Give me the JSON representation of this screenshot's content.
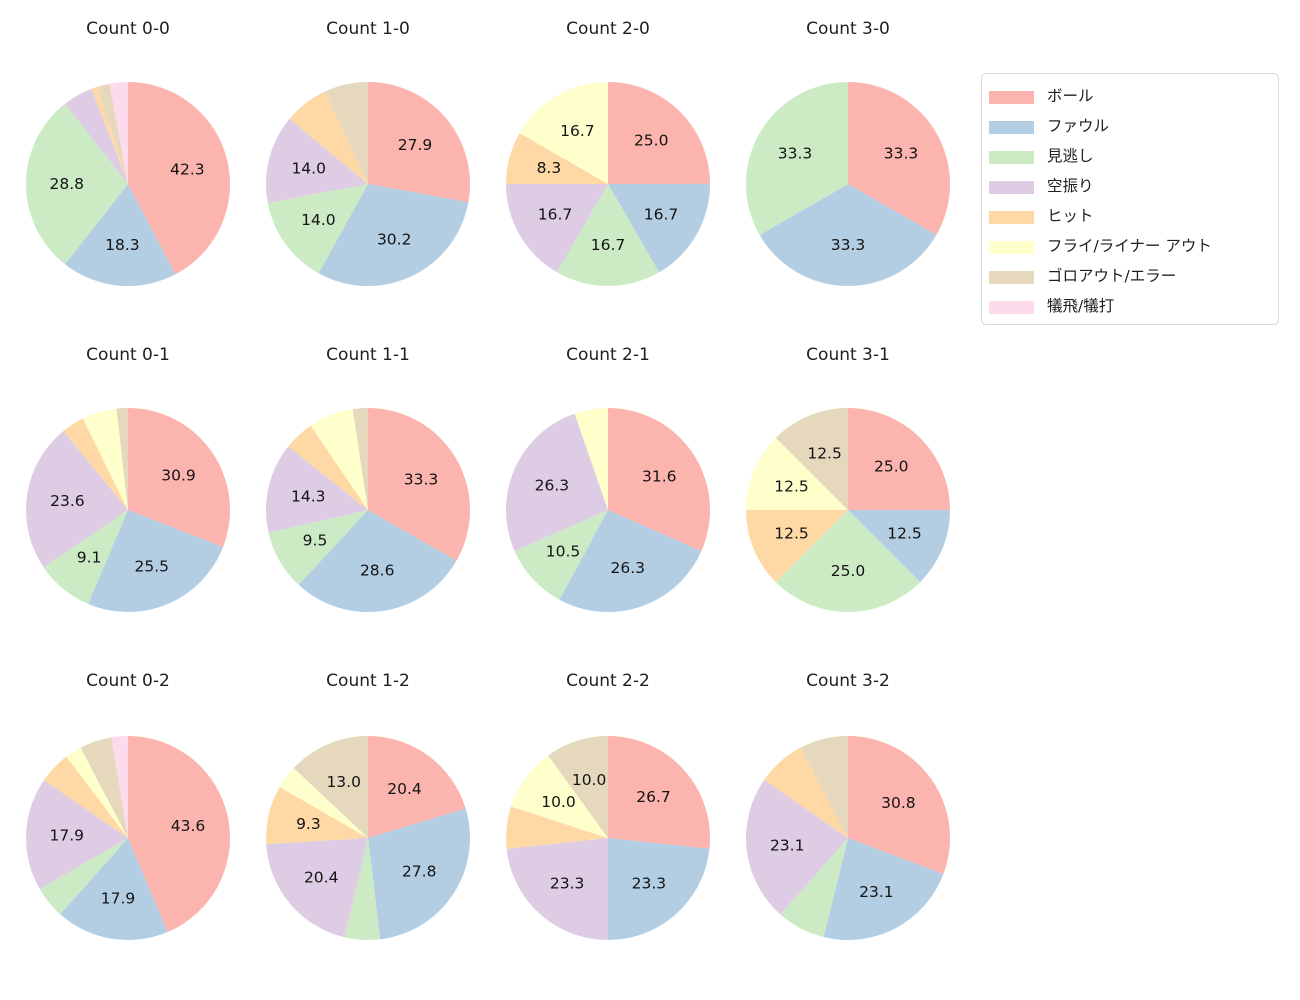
{
  "figure": {
    "background": "#ffffff",
    "text_color": "#1f1f1f"
  },
  "palette": {
    "ボール": "#fbb4ae",
    "ファウル": "#b3cde3",
    "見逃し": "#ccebc5",
    "空振り": "#decbe4",
    "ヒット": "#fed9a6",
    "フライ/ライナー アウト": "#ffffcc",
    "ゴロアウト/エラー": "#e5d8bd",
    "犠飛/犠打": "#fddaec"
  },
  "legend": {
    "position": "upper-right",
    "items": [
      "ボール",
      "ファウル",
      "見逃し",
      "空振り",
      "ヒット",
      "フライ/ライナー アウト",
      "ゴロアウト/エラー",
      "犠飛/犠打"
    ]
  },
  "layout": {
    "grid_rows": 3,
    "grid_cols": 4,
    "start_angle": 90,
    "direction": "clockwise",
    "label_distance": 0.6,
    "label_threshold_pct": 8
  },
  "chart_data": [
    {
      "type": "pie",
      "title": "Count 0-0",
      "slices": [
        {
          "category": "ボール",
          "value": 42.3,
          "label": "42.3"
        },
        {
          "category": "ファウル",
          "value": 18.3,
          "label": "18.3"
        },
        {
          "category": "見逃し",
          "value": 28.8,
          "label": "28.8"
        },
        {
          "category": "空振り",
          "value": 4.8,
          "label": ""
        },
        {
          "category": "ヒット",
          "value": 1.0,
          "label": ""
        },
        {
          "category": "ゴロアウト/エラー",
          "value": 1.9,
          "label": ""
        },
        {
          "category": "犠飛/犠打",
          "value": 2.9,
          "label": ""
        }
      ]
    },
    {
      "type": "pie",
      "title": "Count 1-0",
      "slices": [
        {
          "category": "ボール",
          "value": 27.9,
          "label": "27.9"
        },
        {
          "category": "ファウル",
          "value": 30.2,
          "label": "30.2"
        },
        {
          "category": "見逃し",
          "value": 14.0,
          "label": "14.0"
        },
        {
          "category": "空振り",
          "value": 14.0,
          "label": "14.0"
        },
        {
          "category": "ヒット",
          "value": 7.0,
          "label": ""
        },
        {
          "category": "ゴロアウト/エラー",
          "value": 7.0,
          "label": ""
        }
      ]
    },
    {
      "type": "pie",
      "title": "Count 2-0",
      "slices": [
        {
          "category": "ボール",
          "value": 25.0,
          "label": "25.0"
        },
        {
          "category": "ファウル",
          "value": 16.7,
          "label": "16.7"
        },
        {
          "category": "見逃し",
          "value": 16.7,
          "label": "16.7"
        },
        {
          "category": "空振り",
          "value": 16.7,
          "label": "16.7"
        },
        {
          "category": "ヒット",
          "value": 8.3,
          "label": "8.3"
        },
        {
          "category": "フライ/ライナー アウト",
          "value": 16.7,
          "label": "16.7"
        }
      ]
    },
    {
      "type": "pie",
      "title": "Count 3-0",
      "slices": [
        {
          "category": "ボール",
          "value": 33.3,
          "label": "33.3"
        },
        {
          "category": "ファウル",
          "value": 33.3,
          "label": "33.3"
        },
        {
          "category": "見逃し",
          "value": 33.3,
          "label": "33.3"
        }
      ]
    },
    {
      "type": "pie",
      "title": "Count 0-1",
      "slices": [
        {
          "category": "ボール",
          "value": 30.9,
          "label": "30.9"
        },
        {
          "category": "ファウル",
          "value": 25.5,
          "label": "25.5"
        },
        {
          "category": "見逃し",
          "value": 9.1,
          "label": "9.1"
        },
        {
          "category": "空振り",
          "value": 23.6,
          "label": "23.6"
        },
        {
          "category": "ヒット",
          "value": 3.6,
          "label": ""
        },
        {
          "category": "フライ/ライナー アウト",
          "value": 5.5,
          "label": ""
        },
        {
          "category": "ゴロアウト/エラー",
          "value": 1.8,
          "label": ""
        }
      ]
    },
    {
      "type": "pie",
      "title": "Count 1-1",
      "slices": [
        {
          "category": "ボール",
          "value": 33.3,
          "label": "33.3"
        },
        {
          "category": "ファウル",
          "value": 28.6,
          "label": "28.6"
        },
        {
          "category": "見逃し",
          "value": 9.5,
          "label": "9.5"
        },
        {
          "category": "空振り",
          "value": 14.3,
          "label": "14.3"
        },
        {
          "category": "ヒット",
          "value": 4.8,
          "label": ""
        },
        {
          "category": "フライ/ライナー アウト",
          "value": 7.1,
          "label": ""
        },
        {
          "category": "ゴロアウト/エラー",
          "value": 2.4,
          "label": ""
        }
      ]
    },
    {
      "type": "pie",
      "title": "Count 2-1",
      "slices": [
        {
          "category": "ボール",
          "value": 31.6,
          "label": "31.6"
        },
        {
          "category": "ファウル",
          "value": 26.3,
          "label": "26.3"
        },
        {
          "category": "見逃し",
          "value": 10.5,
          "label": "10.5"
        },
        {
          "category": "空振り",
          "value": 26.3,
          "label": "26.3"
        },
        {
          "category": "フライ/ライナー アウト",
          "value": 5.3,
          "label": ""
        }
      ]
    },
    {
      "type": "pie",
      "title": "Count 3-1",
      "slices": [
        {
          "category": "ボール",
          "value": 25.0,
          "label": "25.0"
        },
        {
          "category": "ファウル",
          "value": 12.5,
          "label": "12.5"
        },
        {
          "category": "見逃し",
          "value": 25.0,
          "label": "25.0"
        },
        {
          "category": "ヒット",
          "value": 12.5,
          "label": "12.5"
        },
        {
          "category": "フライ/ライナー アウト",
          "value": 12.5,
          "label": "12.5"
        },
        {
          "category": "ゴロアウト/エラー",
          "value": 12.5,
          "label": "12.5"
        }
      ]
    },
    {
      "type": "pie",
      "title": "Count 0-2",
      "slices": [
        {
          "category": "ボール",
          "value": 43.6,
          "label": "43.6"
        },
        {
          "category": "ファウル",
          "value": 17.9,
          "label": "17.9"
        },
        {
          "category": "見逃し",
          "value": 5.1,
          "label": ""
        },
        {
          "category": "空振り",
          "value": 17.9,
          "label": "17.9"
        },
        {
          "category": "ヒット",
          "value": 5.1,
          "label": ""
        },
        {
          "category": "フライ/ライナー アウト",
          "value": 2.6,
          "label": ""
        },
        {
          "category": "ゴロアウト/エラー",
          "value": 5.1,
          "label": ""
        },
        {
          "category": "犠飛/犠打",
          "value": 2.6,
          "label": ""
        }
      ]
    },
    {
      "type": "pie",
      "title": "Count 1-2",
      "slices": [
        {
          "category": "ボール",
          "value": 20.4,
          "label": "20.4"
        },
        {
          "category": "ファウル",
          "value": 27.8,
          "label": "27.8"
        },
        {
          "category": "見逃し",
          "value": 5.6,
          "label": ""
        },
        {
          "category": "空振り",
          "value": 20.4,
          "label": "20.4"
        },
        {
          "category": "ヒット",
          "value": 9.3,
          "label": "9.3"
        },
        {
          "category": "フライ/ライナー アウト",
          "value": 3.7,
          "label": ""
        },
        {
          "category": "ゴロアウト/エラー",
          "value": 13.0,
          "label": "13.0"
        }
      ]
    },
    {
      "type": "pie",
      "title": "Count 2-2",
      "slices": [
        {
          "category": "ボール",
          "value": 26.7,
          "label": "26.7"
        },
        {
          "category": "ファウル",
          "value": 23.3,
          "label": "23.3"
        },
        {
          "category": "空振り",
          "value": 23.3,
          "label": "23.3"
        },
        {
          "category": "ヒット",
          "value": 6.7,
          "label": ""
        },
        {
          "category": "フライ/ライナー アウト",
          "value": 10.0,
          "label": "10.0"
        },
        {
          "category": "ゴロアウト/エラー",
          "value": 10.0,
          "label": "10.0"
        }
      ]
    },
    {
      "type": "pie",
      "title": "Count 3-2",
      "slices": [
        {
          "category": "ボール",
          "value": 30.8,
          "label": "30.8"
        },
        {
          "category": "ファウル",
          "value": 23.1,
          "label": "23.1"
        },
        {
          "category": "見逃し",
          "value": 7.7,
          "label": ""
        },
        {
          "category": "空振り",
          "value": 23.1,
          "label": "23.1"
        },
        {
          "category": "ヒット",
          "value": 7.7,
          "label": ""
        },
        {
          "category": "ゴロアウト/エラー",
          "value": 7.7,
          "label": ""
        }
      ]
    }
  ]
}
